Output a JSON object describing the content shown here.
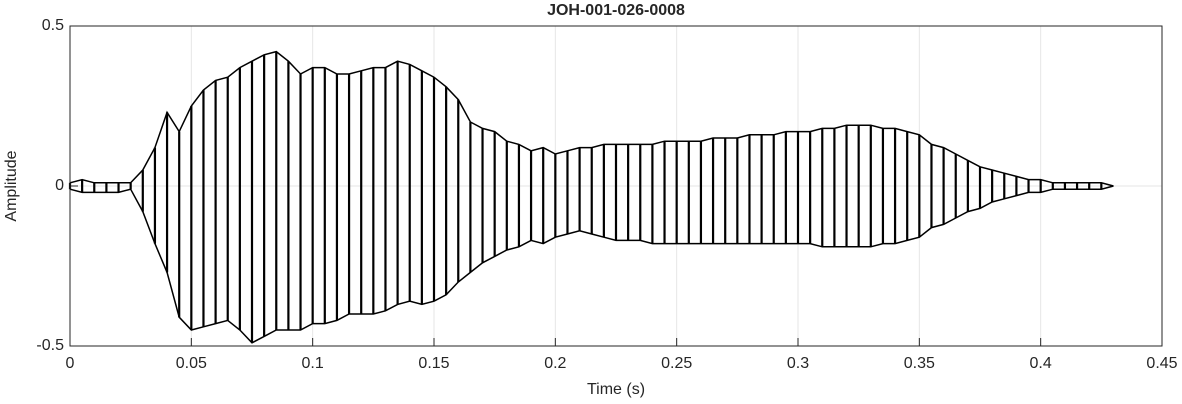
{
  "chart_data": {
    "type": "waveform",
    "title": "JOH-001-026-0008",
    "x_label": "Time (s)",
    "y_label": "Amplitude",
    "xlim": [
      0,
      0.45
    ],
    "xticks": [
      0,
      0.05,
      0.1,
      0.15,
      0.2,
      0.25,
      0.3,
      0.35,
      0.4,
      0.45
    ],
    "ylim": [
      -0.5,
      0.5
    ],
    "yticks": [
      -0.5,
      0,
      0.5
    ],
    "grid": true,
    "x": [
      0,
      0.005,
      0.01,
      0.015,
      0.02,
      0.025,
      0.03,
      0.035,
      0.04,
      0.045,
      0.05,
      0.055,
      0.06,
      0.065,
      0.07,
      0.075,
      0.08,
      0.085,
      0.09,
      0.095,
      0.1,
      0.105,
      0.11,
      0.115,
      0.12,
      0.125,
      0.13,
      0.135,
      0.14,
      0.145,
      0.15,
      0.155,
      0.16,
      0.165,
      0.17,
      0.175,
      0.18,
      0.185,
      0.19,
      0.195,
      0.2,
      0.205,
      0.21,
      0.215,
      0.22,
      0.225,
      0.23,
      0.235,
      0.24,
      0.245,
      0.25,
      0.255,
      0.26,
      0.265,
      0.27,
      0.275,
      0.28,
      0.285,
      0.29,
      0.295,
      0.3,
      0.305,
      0.31,
      0.315,
      0.32,
      0.325,
      0.33,
      0.335,
      0.34,
      0.345,
      0.35,
      0.355,
      0.36,
      0.365,
      0.37,
      0.375,
      0.38,
      0.385,
      0.39,
      0.395,
      0.4,
      0.405,
      0.41,
      0.415,
      0.42,
      0.425,
      0.43
    ],
    "series": [
      {
        "color": "#000000",
        "values": [
          0.01,
          0.02,
          0.01,
          0.01,
          0.01,
          0.01,
          0.05,
          0.12,
          0.23,
          0.17,
          0.25,
          0.3,
          0.33,
          0.34,
          0.37,
          0.39,
          0.41,
          0.42,
          0.39,
          0.35,
          0.37,
          0.37,
          0.35,
          0.35,
          0.36,
          0.37,
          0.37,
          0.39,
          0.38,
          0.36,
          0.34,
          0.31,
          0.27,
          0.2,
          0.18,
          0.17,
          0.14,
          0.13,
          0.11,
          0.12,
          0.1,
          0.11,
          0.12,
          0.12,
          0.13,
          0.13,
          0.13,
          0.13,
          0.13,
          0.14,
          0.14,
          0.14,
          0.14,
          0.15,
          0.15,
          0.15,
          0.16,
          0.16,
          0.16,
          0.17,
          0.17,
          0.17,
          0.18,
          0.18,
          0.19,
          0.19,
          0.19,
          0.18,
          0.18,
          0.17,
          0.16,
          0.13,
          0.12,
          0.1,
          0.08,
          0.06,
          0.05,
          0.04,
          0.03,
          0.02,
          0.02,
          0.01,
          0.01,
          0.01,
          0.01,
          0.01,
          0
        ]
      },
      {
        "color": "#000000",
        "values": [
          -0.01,
          -0.02,
          -0.02,
          -0.02,
          -0.02,
          -0.01,
          -0.08,
          -0.18,
          -0.27,
          -0.41,
          -0.45,
          -0.44,
          -0.43,
          -0.42,
          -0.45,
          -0.49,
          -0.47,
          -0.45,
          -0.45,
          -0.45,
          -0.43,
          -0.43,
          -0.42,
          -0.4,
          -0.4,
          -0.4,
          -0.39,
          -0.37,
          -0.36,
          -0.37,
          -0.36,
          -0.34,
          -0.3,
          -0.27,
          -0.24,
          -0.22,
          -0.2,
          -0.19,
          -0.17,
          -0.18,
          -0.16,
          -0.15,
          -0.14,
          -0.15,
          -0.16,
          -0.17,
          -0.17,
          -0.17,
          -0.18,
          -0.18,
          -0.18,
          -0.18,
          -0.18,
          -0.18,
          -0.18,
          -0.18,
          -0.18,
          -0.18,
          -0.18,
          -0.18,
          -0.18,
          -0.18,
          -0.19,
          -0.19,
          -0.19,
          -0.19,
          -0.19,
          -0.18,
          -0.18,
          -0.17,
          -0.16,
          -0.13,
          -0.12,
          -0.1,
          -0.08,
          -0.07,
          -0.05,
          -0.04,
          -0.03,
          -0.02,
          -0.02,
          -0.01,
          -0.01,
          -0.01,
          -0.01,
          -0.01,
          0
        ]
      }
    ]
  }
}
